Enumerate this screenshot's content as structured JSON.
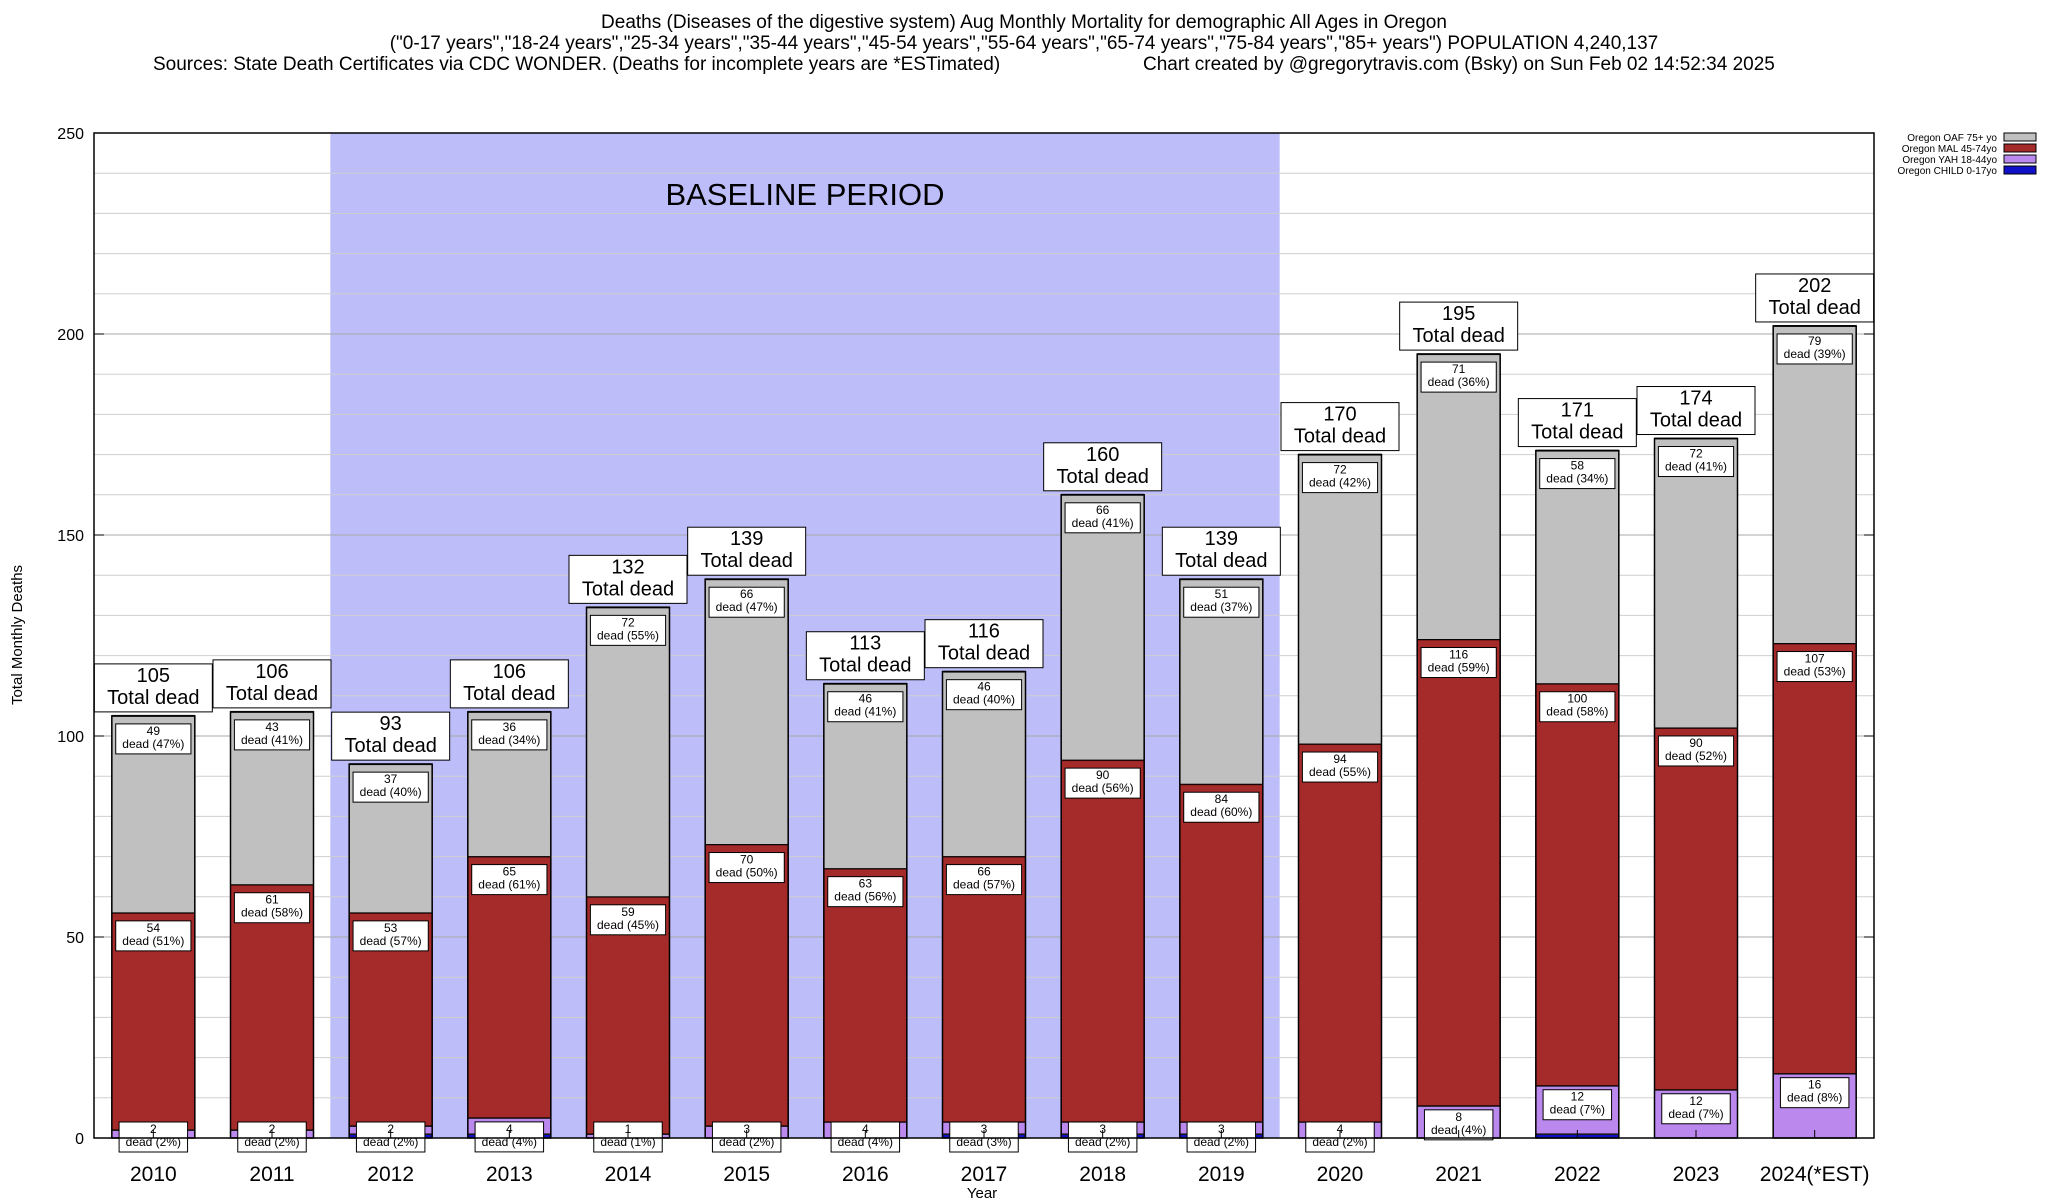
{
  "header": {
    "title_line1": "Deaths (Diseases of the digestive system) Aug Monthly Mortality for demographic All Ages in Oregon",
    "title_line2": "(\"0-17 years\",\"18-24 years\",\"25-34 years\",\"35-44 years\",\"45-54 years\",\"55-64 years\",\"65-74 years\",\"75-84 years\",\"85+ years\") POPULATION 4,240,137",
    "sources": "Sources: State Death Certificates via CDC WONDER. (Deaths for incomplete years are *ESTimated)",
    "created_by": "Chart created by @gregorytravis.com (Bsky) on Sun Feb 02 14:52:34 2025"
  },
  "chart_data": {
    "type": "bar",
    "stacked": true,
    "ylabel": "Total Monthly Deaths",
    "xlabel": "Year",
    "ylim": [
      0,
      250
    ],
    "yticks": [
      0,
      50,
      100,
      150,
      200,
      250
    ],
    "grid": true,
    "legend_position": "top-right",
    "annotation": {
      "text": "BASELINE PERIOD",
      "from": "2012",
      "to": "2019"
    },
    "total_suffix": "Total dead",
    "categories": [
      "2010",
      "2011",
      "2012",
      "2013",
      "2014",
      "2015",
      "2016",
      "2017",
      "2018",
      "2019",
      "2020",
      "2021",
      "2022",
      "2023",
      "2024(*EST)"
    ],
    "series": [
      {
        "name": "Oregon CHILD 0-17yo",
        "color": "#1010c8",
        "values": [
          0,
          0,
          1,
          1,
          0,
          0,
          0,
          1,
          1,
          1,
          0,
          0,
          1,
          0,
          0
        ]
      },
      {
        "name": "Oregon YAH 18-44yo",
        "color": "#bb88ee",
        "values": [
          2,
          2,
          2,
          4,
          1,
          3,
          4,
          3,
          3,
          3,
          4,
          8,
          12,
          12,
          16
        ],
        "labels": [
          "2\ndead (2%)",
          "2\ndead (2%)",
          "2\ndead (2%)",
          "4\ndead (4%)",
          "1\ndead (1%)",
          "3\ndead (2%)",
          "4\ndead (4%)",
          "3\ndead (3%)",
          "3\ndead (2%)",
          "3\ndead (2%)",
          "4\ndead (2%)",
          "8\ndead (4%)",
          "12\ndead (7%)",
          "12\ndead (7%)",
          "16\ndead (8%)"
        ]
      },
      {
        "name": "Oregon MAL 45-74yo",
        "color": "#a52a2a",
        "values": [
          54,
          61,
          53,
          65,
          59,
          70,
          63,
          66,
          90,
          84,
          94,
          116,
          100,
          90,
          107
        ],
        "labels": [
          "54\ndead (51%)",
          "61\ndead (58%)",
          "53\ndead (57%)",
          "65\ndead (61%)",
          "59\ndead (45%)",
          "70\ndead (50%)",
          "63\ndead (56%)",
          "66\ndead (57%)",
          "90\ndead (56%)",
          "84\ndead (60%)",
          "94\ndead (55%)",
          "116\ndead (59%)",
          "100\ndead (58%)",
          "90\ndead (52%)",
          "107\ndead (53%)"
        ]
      },
      {
        "name": "Oregon OAF 75+ yo",
        "color": "#c0c0c0",
        "values": [
          49,
          43,
          37,
          36,
          72,
          66,
          46,
          46,
          66,
          51,
          72,
          71,
          58,
          72,
          79
        ],
        "labels": [
          "49\ndead (47%)",
          "43\ndead (41%)",
          "37\ndead (40%)",
          "36\ndead (34%)",
          "72\ndead (55%)",
          "66\ndead (47%)",
          "46\ndead (41%)",
          "46\ndead (40%)",
          "66\ndead (41%)",
          "51\ndead (37%)",
          "72\ndead (42%)",
          "71\ndead (36%)",
          "58\ndead (34%)",
          "72\ndead (41%)",
          "79\ndead (39%)"
        ]
      }
    ],
    "totals": [
      105,
      106,
      93,
      106,
      132,
      139,
      113,
      116,
      160,
      139,
      170,
      195,
      171,
      174,
      202
    ]
  }
}
